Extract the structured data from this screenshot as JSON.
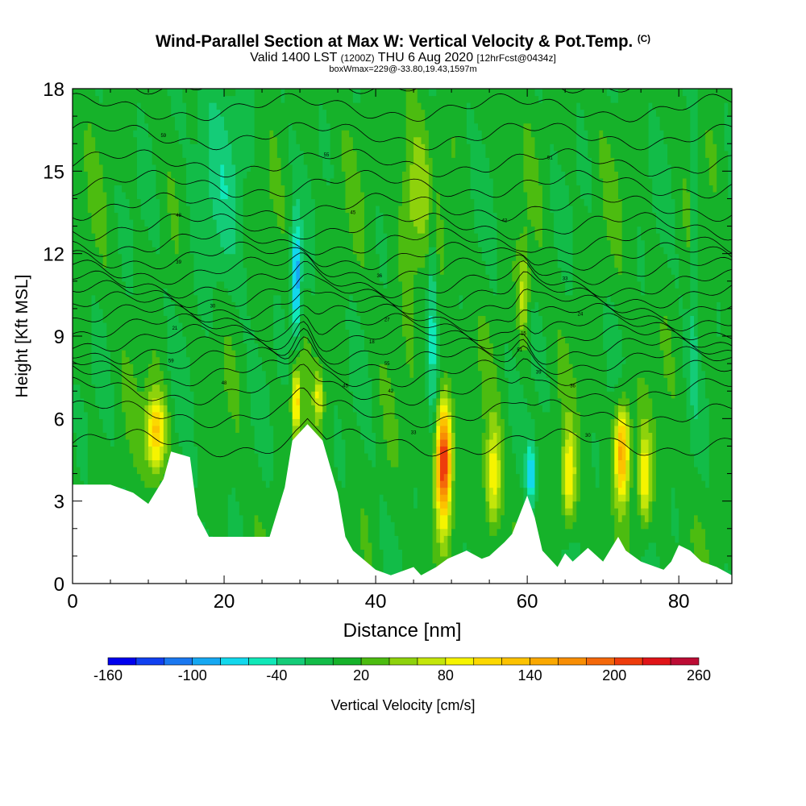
{
  "title": {
    "main": "Wind-Parallel Section at Max W: Vertical Velocity & Pot.Temp.",
    "copyright": "(C)",
    "valid": "Valid 1400 LST",
    "valid_utc": "(1200Z)",
    "valid_date": "THU 6 Aug 2020",
    "forecast": "[12hrFcst@0434z]",
    "box_info": "boxWmax=229@-33.80,19.43,1597m"
  },
  "chart_data": {
    "type": "heatmap",
    "xlabel": "Distance [nm]",
    "ylabel": "Height [Kft MSL]",
    "xlim": [
      0,
      87
    ],
    "ylim": [
      0,
      18
    ],
    "xticks": [
      "0",
      "20",
      "40",
      "60",
      "80"
    ],
    "yticks": [
      "0",
      "3",
      "6",
      "9",
      "12",
      "15",
      "18"
    ],
    "colorbar": {
      "label": "Vertical Velocity [cm/s]",
      "tick_labels": [
        "-160",
        "-100",
        "-40",
        "20",
        "80",
        "140",
        "200",
        "260"
      ],
      "levels": [
        -160,
        -140,
        -120,
        -100,
        -80,
        -60,
        -40,
        -20,
        0,
        20,
        40,
        60,
        80,
        100,
        120,
        140,
        160,
        180,
        200,
        220,
        240,
        260
      ],
      "colors": [
        "#0000ee",
        "#1040f0",
        "#1a78f0",
        "#16a8f2",
        "#12d8ec",
        "#10e8b8",
        "#14cc78",
        "#12bc48",
        "#16b22a",
        "#4cbc10",
        "#8ed20c",
        "#c4e60a",
        "#f6f400",
        "#fcd800",
        "#fcc200",
        "#faa800",
        "#f88e04",
        "#f4680a",
        "#ee3c0c",
        "#e01418",
        "#bc0c34"
      ]
    },
    "terrain": [
      {
        "x": 0,
        "h": 3.6
      },
      {
        "x": 5,
        "h": 3.6
      },
      {
        "x": 8,
        "h": 3.3
      },
      {
        "x": 10,
        "h": 2.9
      },
      {
        "x": 12,
        "h": 3.8
      },
      {
        "x": 13,
        "h": 4.8
      },
      {
        "x": 15.5,
        "h": 4.6
      },
      {
        "x": 16.5,
        "h": 2.5
      },
      {
        "x": 18,
        "h": 1.7
      },
      {
        "x": 26,
        "h": 1.7
      },
      {
        "x": 28,
        "h": 3.5
      },
      {
        "x": 29,
        "h": 5.2
      },
      {
        "x": 30,
        "h": 5.5
      },
      {
        "x": 31,
        "h": 5.8
      },
      {
        "x": 33,
        "h": 5.2
      },
      {
        "x": 35,
        "h": 3.3
      },
      {
        "x": 36,
        "h": 1.7
      },
      {
        "x": 37,
        "h": 1.2
      },
      {
        "x": 40,
        "h": 0.5
      },
      {
        "x": 42,
        "h": 0.3
      },
      {
        "x": 45,
        "h": 0.6
      },
      {
        "x": 46,
        "h": 0.3
      },
      {
        "x": 48,
        "h": 0.6
      },
      {
        "x": 49.5,
        "h": 0.9
      },
      {
        "x": 52,
        "h": 1.2
      },
      {
        "x": 54,
        "h": 0.9
      },
      {
        "x": 55,
        "h": 1.0
      },
      {
        "x": 57,
        "h": 1.5
      },
      {
        "x": 58,
        "h": 1.8
      },
      {
        "x": 60,
        "h": 3.2
      },
      {
        "x": 61,
        "h": 2.4
      },
      {
        "x": 62,
        "h": 1.2
      },
      {
        "x": 64,
        "h": 0.6
      },
      {
        "x": 65,
        "h": 1.1
      },
      {
        "x": 66,
        "h": 0.8
      },
      {
        "x": 68,
        "h": 1.3
      },
      {
        "x": 70,
        "h": 0.8
      },
      {
        "x": 72,
        "h": 1.7
      },
      {
        "x": 73,
        "h": 1.2
      },
      {
        "x": 75,
        "h": 0.8
      },
      {
        "x": 78,
        "h": 0.5
      },
      {
        "x": 79,
        "h": 0.8
      },
      {
        "x": 80,
        "h": 1.4
      },
      {
        "x": 81.5,
        "h": 1.2
      },
      {
        "x": 83,
        "h": 0.8
      },
      {
        "x": 85,
        "h": 0.6
      },
      {
        "x": 87,
        "h": 0.3
      }
    ],
    "updrafts": [
      {
        "x": 11,
        "z": 5.5,
        "sx": 0.9,
        "sz": 1.0,
        "w": 120
      },
      {
        "x": 29.5,
        "z": 6.6,
        "sx": 0.4,
        "sz": 0.9,
        "w": 110
      },
      {
        "x": 32.5,
        "z": 6.8,
        "sx": 0.4,
        "sz": 0.6,
        "w": 70
      },
      {
        "x": 49,
        "z": 4.5,
        "sx": 0.7,
        "sz": 1.5,
        "w": 229
      },
      {
        "x": 55.5,
        "z": 3.8,
        "sx": 0.7,
        "sz": 1.3,
        "w": 90
      },
      {
        "x": 59.5,
        "z": 10.5,
        "sx": 0.5,
        "sz": 1.2,
        "w": 60
      },
      {
        "x": 65.5,
        "z": 3.8,
        "sx": 0.6,
        "sz": 1.2,
        "w": 95
      },
      {
        "x": 72.5,
        "z": 4.8,
        "sx": 0.7,
        "sz": 1.2,
        "w": 150
      },
      {
        "x": 75.5,
        "z": 3.8,
        "sx": 0.6,
        "sz": 1.2,
        "w": 90
      },
      {
        "x": 45,
        "z": 14.0,
        "sx": 1.5,
        "sz": 2.0,
        "w": 50
      }
    ],
    "downdrafts": [
      {
        "x": 29.5,
        "z": 11.0,
        "sx": 0.45,
        "sz": 1.5,
        "w": -110
      },
      {
        "x": 60.5,
        "z": 4.0,
        "sx": 0.45,
        "sz": 0.8,
        "w": -90
      },
      {
        "x": 47.5,
        "z": 10.0,
        "sx": 0.4,
        "sz": 3.0,
        "w": -50
      },
      {
        "x": 82,
        "z": 12.0,
        "sx": 0.3,
        "sz": 4.0,
        "w": -40
      },
      {
        "x": 19,
        "z": 15.0,
        "sx": 3.0,
        "sz": 3.0,
        "w": -30
      }
    ],
    "contour_labels": [
      "59",
      "55",
      "51",
      "48",
      "45",
      "42",
      "39",
      "36",
      "33",
      "30",
      "27",
      "24",
      "21",
      "18",
      "15"
    ]
  }
}
